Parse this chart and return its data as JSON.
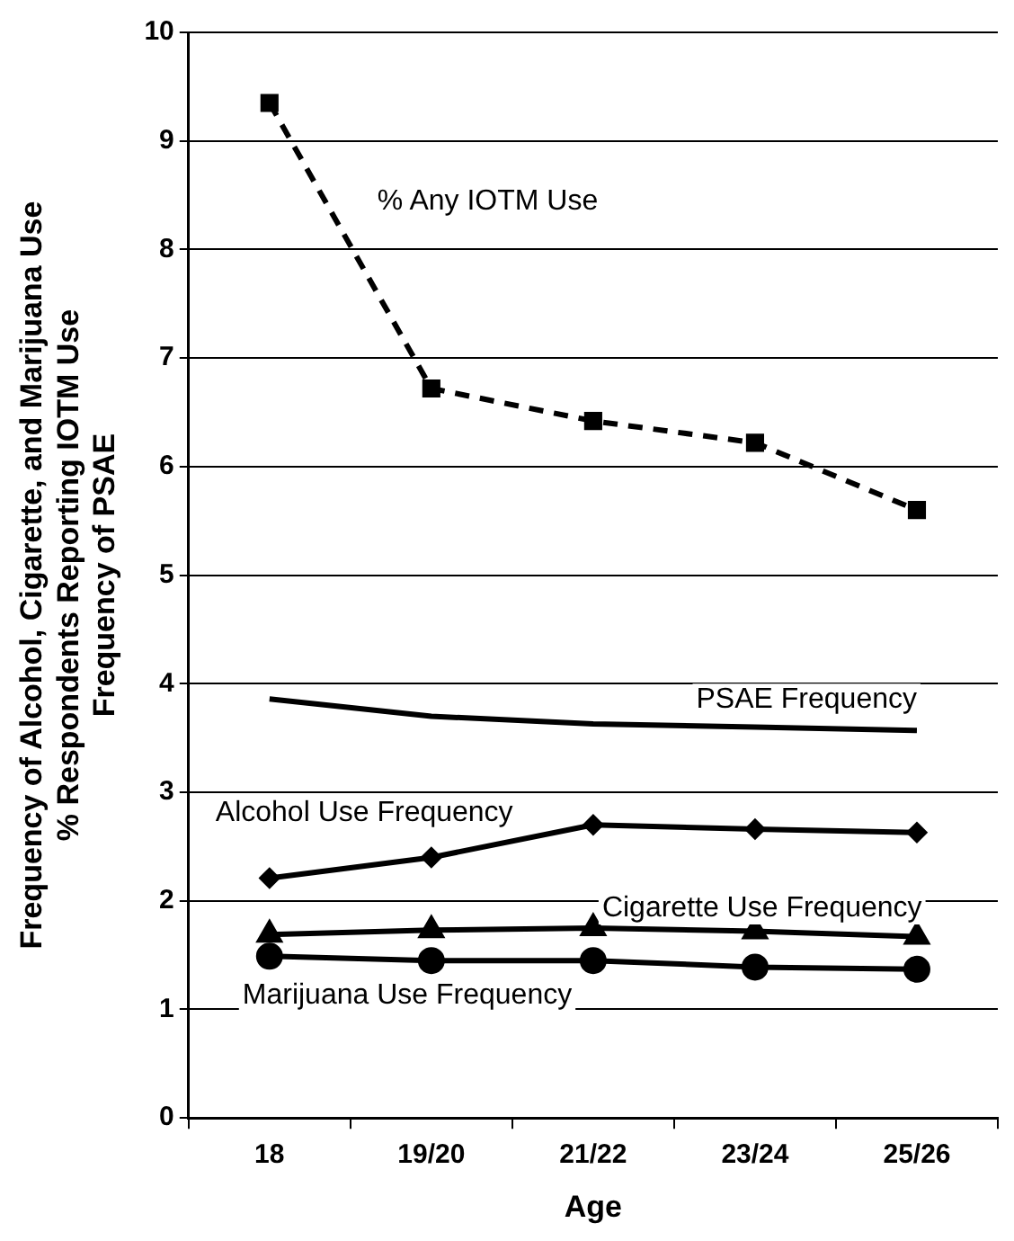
{
  "chart_data": {
    "type": "line",
    "xlabel": "Age",
    "ylabel": "Frequency of Alcohol, Cigarette, and Marijuana Use\n% Respondents Reporting IOTM Use\nFrequency of PSAE",
    "categories": [
      "18",
      "19/20",
      "21/22",
      "23/24",
      "25/26"
    ],
    "ylim": [
      0,
      10
    ],
    "yticks": [
      0,
      1,
      2,
      3,
      4,
      5,
      6,
      7,
      8,
      9,
      10
    ],
    "grid": "y",
    "legend": false,
    "series": [
      {
        "name": "% Any IOTM Use",
        "color": "#000000",
        "marker": "square",
        "line_style": "dashed",
        "values": [
          9.35,
          6.72,
          6.42,
          6.22,
          5.6
        ]
      },
      {
        "name": "PSAE Frequency",
        "color": "#000000",
        "marker": "none",
        "line_style": "solid",
        "values": [
          3.86,
          3.7,
          3.63,
          3.6,
          3.57
        ]
      },
      {
        "name": "Alcohol Use Frequency",
        "color": "#000000",
        "marker": "diamond",
        "line_style": "solid",
        "values": [
          2.21,
          2.4,
          2.7,
          2.66,
          2.63
        ]
      },
      {
        "name": "Cigarette Use Frequency",
        "color": "#000000",
        "marker": "triangle",
        "line_style": "solid",
        "values": [
          1.69,
          1.73,
          1.75,
          1.72,
          1.67
        ]
      },
      {
        "name": "Marijuana Use Frequency",
        "color": "#000000",
        "marker": "circle",
        "line_style": "solid",
        "values": [
          1.49,
          1.45,
          1.45,
          1.39,
          1.37
        ]
      }
    ]
  }
}
